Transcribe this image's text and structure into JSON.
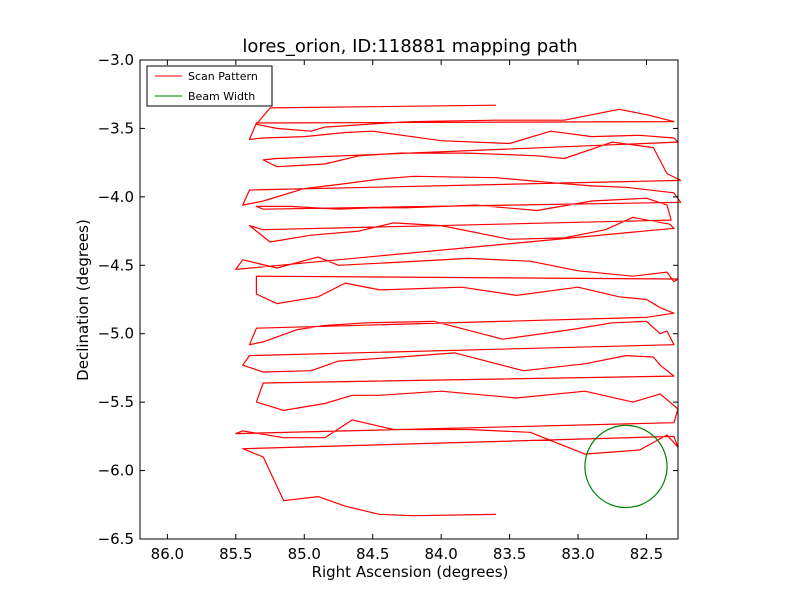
{
  "chart_data": {
    "type": "line",
    "title": "lores_orion, ID:118881 mapping path",
    "xlabel": "Right Ascension (degrees)",
    "ylabel": "Declination (degrees)",
    "xlim": [
      86.2,
      82.27
    ],
    "ylim": [
      -6.5,
      -3.0
    ],
    "x_ticks": [
      86.0,
      85.5,
      85.0,
      84.5,
      84.0,
      83.5,
      83.0,
      82.5
    ],
    "x_tick_labels": [
      "86.0",
      "85.5",
      "85.0",
      "84.5",
      "84.0",
      "83.5",
      "83.0",
      "82.5"
    ],
    "y_ticks": [
      -3.0,
      -3.5,
      -4.0,
      -4.5,
      -5.0,
      -5.5,
      -6.0,
      -6.5
    ],
    "y_tick_labels": [
      "−3.0",
      "−3.5",
      "−4.0",
      "−4.5",
      "−5.0",
      "−5.5",
      "−6.0",
      "−6.5"
    ],
    "grid": false,
    "legend_position": "top-left",
    "series": [
      {
        "name": "Scan Pattern",
        "color": "#ff0000",
        "x": [
          83.6,
          85.25,
          85.35,
          85.2,
          84.95,
          84.85,
          84.4,
          84.2,
          83.6,
          83.1,
          82.7,
          82.5,
          82.3,
          82.33,
          85.35,
          85.4,
          85.3,
          85.0,
          84.7,
          84.5,
          84.0,
          83.5,
          83.2,
          82.9,
          82.55,
          82.3,
          82.27,
          85.2,
          85.3,
          85.2,
          84.85,
          84.6,
          84.3,
          83.8,
          83.3,
          83.1,
          82.75,
          82.45,
          82.35,
          82.25,
          85.4,
          85.45,
          85.3,
          85.0,
          84.75,
          84.45,
          84.2,
          83.6,
          83.15,
          82.9,
          82.65,
          82.3,
          82.25,
          85.3,
          85.35,
          85.1,
          84.75,
          84.5,
          84.25,
          83.75,
          83.3,
          82.9,
          82.5,
          82.35,
          82.32,
          85.3,
          85.4,
          85.25,
          84.95,
          84.6,
          84.35,
          84.0,
          83.5,
          83.1,
          82.8,
          82.6,
          82.33,
          82.3,
          85.5,
          85.45,
          85.2,
          84.9,
          84.75,
          84.35,
          83.8,
          83.35,
          83.0,
          82.6,
          82.35,
          82.3,
          82.27,
          85.35,
          85.35,
          85.2,
          84.9,
          84.7,
          84.45,
          83.85,
          83.45,
          83.0,
          82.7,
          82.5,
          82.4,
          82.3,
          82.5,
          85.35,
          85.4,
          85.3,
          85.05,
          84.85,
          84.55,
          84.05,
          83.55,
          83.05,
          82.75,
          82.5,
          82.4,
          82.35,
          82.3,
          85.4,
          85.45,
          85.3,
          84.95,
          84.75,
          84.3,
          83.9,
          83.4,
          82.95,
          82.65,
          82.45,
          82.4,
          82.3,
          85.3,
          85.35,
          85.15,
          84.85,
          84.65,
          84.45,
          84.0,
          83.45,
          82.95,
          82.6,
          82.4,
          82.27,
          82.3,
          85.5,
          85.45,
          85.15,
          84.85,
          84.65,
          84.35,
          83.8,
          83.35,
          82.95,
          82.55,
          82.35,
          82.27,
          82.3,
          85.45,
          85.3,
          85.15,
          84.9,
          84.7,
          84.45,
          84.2,
          83.6
        ],
        "y": [
          -3.33,
          -3.35,
          -3.47,
          -3.5,
          -3.52,
          -3.49,
          -3.46,
          -3.45,
          -3.44,
          -3.44,
          -3.36,
          -3.4,
          -3.45,
          -3.45,
          -3.46,
          -3.58,
          -3.57,
          -3.56,
          -3.53,
          -3.52,
          -3.59,
          -3.61,
          -3.52,
          -3.56,
          -3.55,
          -3.57,
          -3.6,
          -3.72,
          -3.73,
          -3.78,
          -3.76,
          -3.7,
          -3.68,
          -3.68,
          -3.7,
          -3.72,
          -3.6,
          -3.64,
          -3.83,
          -3.88,
          -3.95,
          -4.06,
          -4.03,
          -3.94,
          -3.91,
          -3.87,
          -3.85,
          -3.86,
          -3.9,
          -3.92,
          -3.93,
          -3.97,
          -4.04,
          -4.09,
          -4.07,
          -4.07,
          -4.09,
          -4.08,
          -4.08,
          -4.06,
          -4.1,
          -4.03,
          -4.01,
          -4.06,
          -4.17,
          -4.24,
          -4.21,
          -4.33,
          -4.28,
          -4.25,
          -4.19,
          -4.21,
          -4.31,
          -4.3,
          -4.24,
          -4.15,
          -4.2,
          -4.23,
          -4.53,
          -4.46,
          -4.52,
          -4.44,
          -4.5,
          -4.48,
          -4.45,
          -4.47,
          -4.54,
          -4.58,
          -4.55,
          -4.62,
          -4.6,
          -4.58,
          -4.71,
          -4.78,
          -4.73,
          -4.63,
          -4.68,
          -4.66,
          -4.72,
          -4.66,
          -4.73,
          -4.75,
          -4.81,
          -4.85,
          -4.88,
          -4.96,
          -5.08,
          -5.06,
          -4.97,
          -4.94,
          -4.92,
          -4.91,
          -5.04,
          -4.97,
          -4.92,
          -4.91,
          -5.0,
          -4.98,
          -5.08,
          -5.16,
          -5.23,
          -5.28,
          -5.27,
          -5.2,
          -5.17,
          -5.14,
          -5.27,
          -5.22,
          -5.16,
          -5.17,
          -5.23,
          -5.31,
          -5.36,
          -5.5,
          -5.56,
          -5.51,
          -5.45,
          -5.45,
          -5.42,
          -5.47,
          -5.42,
          -5.5,
          -5.44,
          -5.55,
          -5.65,
          -5.73,
          -5.71,
          -5.76,
          -5.76,
          -5.63,
          -5.7,
          -5.7,
          -5.72,
          -5.88,
          -5.85,
          -5.74,
          -5.83,
          -5.75,
          -5.84,
          -5.9,
          -6.22,
          -6.19,
          -6.26,
          -6.32,
          -6.33,
          -6.32
        ]
      },
      {
        "name": "Beam Width",
        "color": "#008000",
        "shape": "circle",
        "center": [
          82.65,
          -5.97
        ],
        "radius": 0.3
      }
    ]
  }
}
